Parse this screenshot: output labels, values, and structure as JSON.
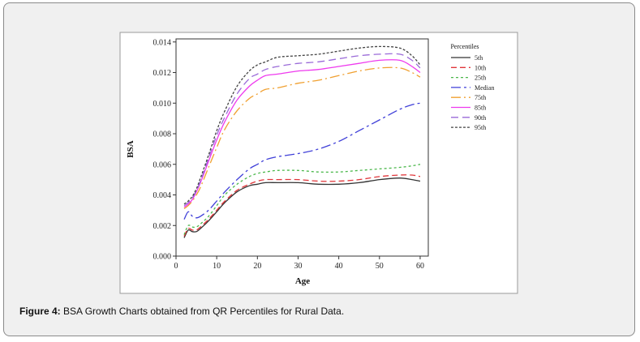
{
  "caption": {
    "label": "Figure 4:",
    "text": " BSA Growth Charts obtained from QR Percentiles for Rural Data."
  },
  "chart_data": {
    "type": "line",
    "xlabel": "Age",
    "ylabel": "BSA",
    "xlim": [
      0,
      62
    ],
    "ylim": [
      0,
      0.0142
    ],
    "x_ticks": [
      0,
      10,
      20,
      30,
      40,
      50,
      60
    ],
    "x_tick_labels": [
      "0",
      "10",
      "20",
      "30",
      "40",
      "50",
      "60"
    ],
    "y_ticks": [
      0.0,
      0.002,
      0.004,
      0.006,
      0.008,
      0.01,
      0.012,
      0.014
    ],
    "y_tick_labels": [
      "0.000",
      "0.002",
      "0.004",
      "0.006",
      "0.008",
      "0.010",
      "0.012",
      "0.014"
    ],
    "legend_title": "Percentiles",
    "legend_position": "right",
    "grid": false,
    "x": [
      2,
      3,
      4,
      5,
      6,
      8,
      10,
      12,
      15,
      18,
      20,
      22,
      25,
      30,
      35,
      40,
      45,
      50,
      55,
      58,
      60
    ],
    "series": [
      {
        "name": "5th",
        "color": "#333333",
        "dash": "",
        "values": [
          0.0012,
          0.0017,
          0.0016,
          0.0016,
          0.0018,
          0.0023,
          0.0029,
          0.0035,
          0.0042,
          0.0046,
          0.0047,
          0.0048,
          0.0048,
          0.0048,
          0.0047,
          0.0047,
          0.0048,
          0.005,
          0.0051,
          0.005,
          0.0049
        ]
      },
      {
        "name": "10th",
        "color": "#e0363a",
        "dash": "7,4",
        "values": [
          0.0013,
          0.0018,
          0.0017,
          0.0017,
          0.0019,
          0.0024,
          0.003,
          0.0036,
          0.0043,
          0.0047,
          0.0049,
          0.005,
          0.005,
          0.005,
          0.0049,
          0.0049,
          0.005,
          0.0052,
          0.0053,
          0.0053,
          0.0052
        ]
      },
      {
        "name": "25th",
        "color": "#4cb84c",
        "dash": "3,3",
        "values": [
          0.0014,
          0.002,
          0.0019,
          0.0019,
          0.0021,
          0.0026,
          0.0033,
          0.004,
          0.0047,
          0.0052,
          0.0054,
          0.0055,
          0.0056,
          0.0056,
          0.0055,
          0.0055,
          0.0056,
          0.0057,
          0.0058,
          0.0059,
          0.006
        ]
      },
      {
        "name": "Median",
        "color": "#3f3fd8",
        "dash": "12,4,3,4",
        "values": [
          0.0024,
          0.0029,
          0.0026,
          0.0025,
          0.0026,
          0.003,
          0.0036,
          0.0042,
          0.005,
          0.0057,
          0.006,
          0.0063,
          0.0065,
          0.0067,
          0.007,
          0.0075,
          0.0082,
          0.0089,
          0.0096,
          0.0099,
          0.01
        ]
      },
      {
        "name": "75th",
        "color": "#f0a030",
        "dash": "12,4,2,4",
        "values": [
          0.0031,
          0.0033,
          0.0036,
          0.004,
          0.0045,
          0.0058,
          0.0071,
          0.0083,
          0.0095,
          0.0103,
          0.0106,
          0.0109,
          0.011,
          0.0113,
          0.0115,
          0.0118,
          0.0121,
          0.0123,
          0.0123,
          0.012,
          0.0117
        ]
      },
      {
        "name": "85th",
        "color": "#ee3aee",
        "dash": "",
        "values": [
          0.0032,
          0.0034,
          0.0037,
          0.0042,
          0.0048,
          0.0062,
          0.0076,
          0.0088,
          0.0102,
          0.0111,
          0.0115,
          0.0118,
          0.0119,
          0.0121,
          0.0122,
          0.0124,
          0.0126,
          0.0128,
          0.0128,
          0.0124,
          0.012
        ]
      },
      {
        "name": "90th",
        "color": "#9a6ad8",
        "dash": "9,5",
        "values": [
          0.0033,
          0.0035,
          0.0038,
          0.0043,
          0.0049,
          0.0064,
          0.0079,
          0.0091,
          0.0106,
          0.0116,
          0.0119,
          0.0122,
          0.0124,
          0.0126,
          0.0127,
          0.0129,
          0.0131,
          0.0132,
          0.0132,
          0.0128,
          0.0123
        ]
      },
      {
        "name": "95th",
        "color": "#444444",
        "dash": "3,2",
        "values": [
          0.0034,
          0.0036,
          0.0039,
          0.0044,
          0.0051,
          0.0066,
          0.0082,
          0.0095,
          0.0111,
          0.0121,
          0.0125,
          0.0127,
          0.013,
          0.0131,
          0.0132,
          0.0134,
          0.0136,
          0.0137,
          0.0136,
          0.0131,
          0.0125
        ]
      }
    ]
  }
}
